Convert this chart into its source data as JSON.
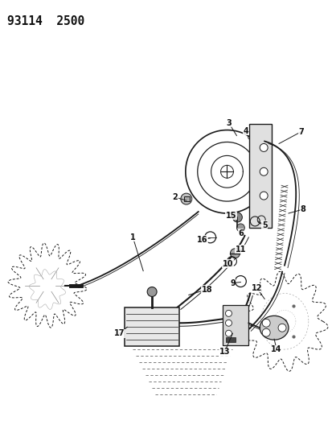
{
  "title": "93114  2500",
  "bg_color": "#ffffff",
  "fig_width": 4.14,
  "fig_height": 5.33,
  "dpi": 100,
  "line_color": "#1a1a1a",
  "label_fontsize": 7.0,
  "title_fontsize": 10.5
}
